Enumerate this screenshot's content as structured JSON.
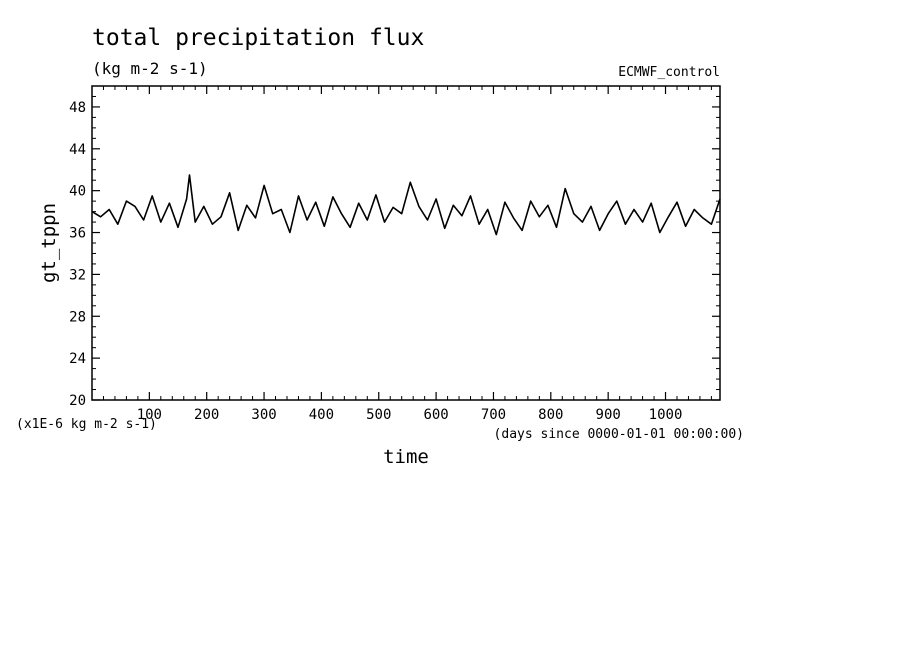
{
  "chart_data": {
    "type": "line",
    "title": "total precipitation flux",
    "subtitle": "(kg m-2 s-1)",
    "dataset_label": "ECMWF_control",
    "xlabel": "time",
    "x_units": "(days since 0000-01-01 00:00:00)",
    "ylabel": "gt_tppn",
    "y_scale_note": "(x1E-6 kg m-2 s-1)",
    "xlim": [
      0,
      1095
    ],
    "ylim": [
      20,
      50
    ],
    "x_ticks": [
      100,
      200,
      300,
      400,
      500,
      600,
      700,
      800,
      900,
      1000
    ],
    "y_ticks": [
      20,
      24,
      28,
      32,
      36,
      40,
      44,
      48
    ],
    "grid": false,
    "legend": "none",
    "series_color": "#000000",
    "series": [
      {
        "x": [
          0,
          15,
          30,
          45,
          60,
          75,
          90,
          105,
          120,
          135,
          150,
          165,
          170,
          180,
          195,
          210,
          225,
          240,
          255,
          270,
          285,
          300,
          315,
          330,
          345,
          360,
          375,
          390,
          405,
          420,
          435,
          450,
          465,
          480,
          495,
          510,
          525,
          540,
          555,
          570,
          585,
          600,
          615,
          630,
          645,
          660,
          675,
          690,
          705,
          720,
          735,
          750,
          765,
          780,
          795,
          810,
          825,
          840,
          855,
          870,
          885,
          900,
          915,
          930,
          945,
          960,
          975,
          990,
          1005,
          1020,
          1035,
          1050,
          1065,
          1080,
          1095
        ],
        "values": [
          38.0,
          37.5,
          38.2,
          36.8,
          39.0,
          38.5,
          37.2,
          39.5,
          37.0,
          38.8,
          36.5,
          39.2,
          41.5,
          37.0,
          38.5,
          36.8,
          37.5,
          39.8,
          36.2,
          38.6,
          37.4,
          40.5,
          37.8,
          38.2,
          36.0,
          39.5,
          37.2,
          38.9,
          36.6,
          39.4,
          37.8,
          36.5,
          38.8,
          37.2,
          39.6,
          37.0,
          38.4,
          37.8,
          40.8,
          38.5,
          37.2,
          39.2,
          36.4,
          38.6,
          37.6,
          39.5,
          36.8,
          38.2,
          35.8,
          38.9,
          37.4,
          36.2,
          39.0,
          37.5,
          38.6,
          36.5,
          40.2,
          37.8,
          37.0,
          38.5,
          36.2,
          37.8,
          39.0,
          36.8,
          38.2,
          37.0,
          38.8,
          36.0,
          37.5,
          38.9,
          36.6,
          38.2,
          37.4,
          36.8,
          39.2
        ]
      }
    ]
  }
}
